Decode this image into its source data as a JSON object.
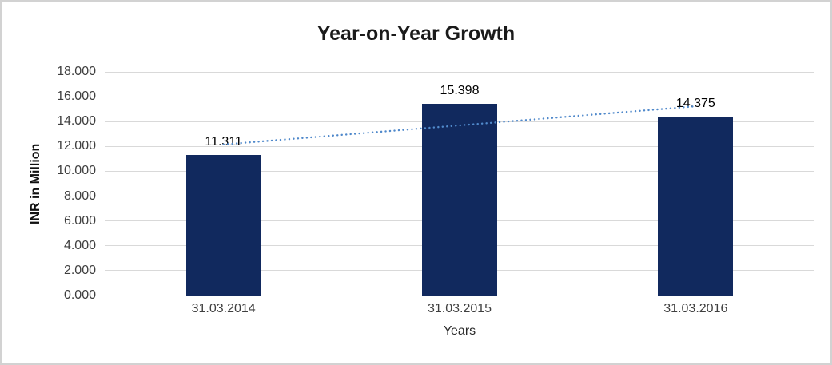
{
  "frame": {
    "background": "#ffffff",
    "border_color": "#d2d2d2"
  },
  "chart_data": {
    "type": "bar",
    "title": "Year-on-Year Growth",
    "categories": [
      "31.03.2014",
      "31.03.2015",
      "31.03.2016"
    ],
    "values": [
      11.311,
      15.398,
      14.375
    ],
    "value_labels": [
      "11.311",
      "15.398",
      "14.375"
    ],
    "xlabel": "Years",
    "ylabel": "INR in Million",
    "ylim": [
      0,
      18
    ],
    "ytick_step": 2,
    "ytick_labels": [
      "0.000",
      "2.000",
      "4.000",
      "6.000",
      "8.000",
      "10.000",
      "12.000",
      "14.000",
      "16.000",
      "18.000"
    ],
    "grid": true,
    "legend": "none",
    "trendline": {
      "type": "linear",
      "style": "dotted",
      "color": "#5089cb"
    },
    "colors": {
      "bar": "#11295e",
      "gridline": "#d9d9d9",
      "axis_line": "#c6c6c6",
      "tick_label": "#3f3f3f",
      "data_label": "#000000",
      "title": "#1a1a1a"
    }
  }
}
